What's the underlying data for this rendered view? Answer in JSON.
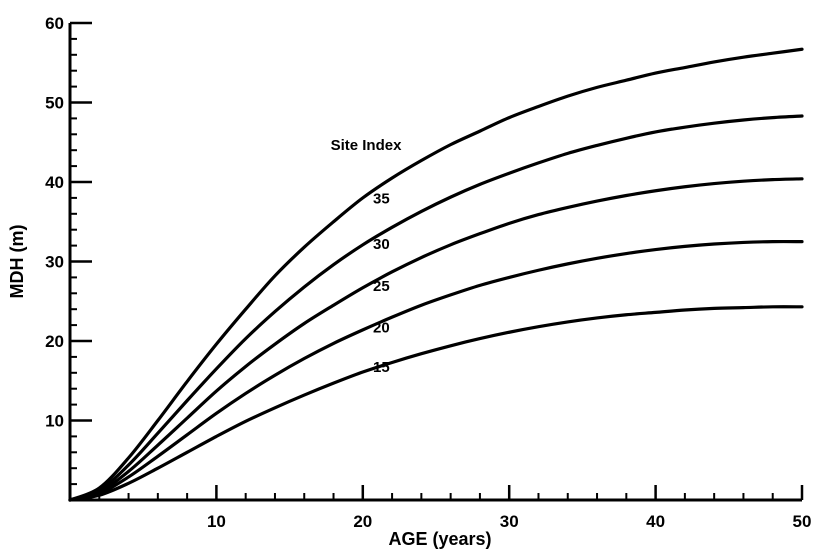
{
  "chart_data": {
    "type": "line",
    "title": "",
    "xlabel": "AGE (years)",
    "ylabel": "MDH (m)",
    "xlim": [
      0,
      50
    ],
    "ylim": [
      0,
      60
    ],
    "x_ticks": [
      10,
      20,
      30,
      40,
      50
    ],
    "y_ticks": [
      10,
      20,
      30,
      40,
      50,
      60
    ],
    "x_minor_step": 2,
    "y_minor_step": 2,
    "grid": false,
    "legend": "none",
    "annotation_title": "Site Index",
    "x": [
      0,
      2,
      4,
      6,
      8,
      10,
      12,
      14,
      16,
      18,
      20,
      22,
      24,
      26,
      28,
      30,
      32,
      34,
      36,
      38,
      40,
      42,
      44,
      46,
      48,
      50
    ],
    "series": [
      {
        "label": "35",
        "label_at": {
          "x": 20.7,
          "y": 37.3
        },
        "values": [
          0,
          1.5,
          5.3,
          10.0,
          14.9,
          19.6,
          24.0,
          28.2,
          31.8,
          35.0,
          38.0,
          40.5,
          42.7,
          44.7,
          46.4,
          48.1,
          49.5,
          50.8,
          51.9,
          52.8,
          53.7,
          54.4,
          55.1,
          55.7,
          56.2,
          56.7
        ]
      },
      {
        "label": "30",
        "label_at": {
          "x": 20.7,
          "y": 31.6
        },
        "values": [
          0,
          1.2,
          4.4,
          8.4,
          12.5,
          16.5,
          20.3,
          23.7,
          26.8,
          29.6,
          32.1,
          34.3,
          36.3,
          38.1,
          39.7,
          41.1,
          42.4,
          43.6,
          44.6,
          45.5,
          46.3,
          46.9,
          47.4,
          47.8,
          48.1,
          48.3
        ]
      },
      {
        "label": "25",
        "label_at": {
          "x": 20.7,
          "y": 26.3
        },
        "values": [
          0,
          1.0,
          3.6,
          6.9,
          10.3,
          13.7,
          16.8,
          19.6,
          22.2,
          24.5,
          26.7,
          28.7,
          30.5,
          32.1,
          33.5,
          34.8,
          35.9,
          36.8,
          37.6,
          38.3,
          38.9,
          39.4,
          39.8,
          40.1,
          40.3,
          40.4
        ]
      },
      {
        "label": "20",
        "label_at": {
          "x": 20.7,
          "y": 21.1
        },
        "values": [
          0,
          0.8,
          2.9,
          5.5,
          8.2,
          10.9,
          13.4,
          15.7,
          17.8,
          19.7,
          21.4,
          23.0,
          24.5,
          25.8,
          27.0,
          28.0,
          28.9,
          29.7,
          30.4,
          31.0,
          31.5,
          31.9,
          32.2,
          32.4,
          32.5,
          32.5
        ]
      },
      {
        "label": "15",
        "label_at": {
          "x": 20.7,
          "y": 16.1
        },
        "values": [
          0,
          0.6,
          2.1,
          4.0,
          6.0,
          8.0,
          9.9,
          11.6,
          13.2,
          14.7,
          16.1,
          17.3,
          18.4,
          19.4,
          20.3,
          21.1,
          21.8,
          22.4,
          22.9,
          23.3,
          23.6,
          23.9,
          24.1,
          24.2,
          24.3,
          24.3
        ]
      }
    ]
  }
}
